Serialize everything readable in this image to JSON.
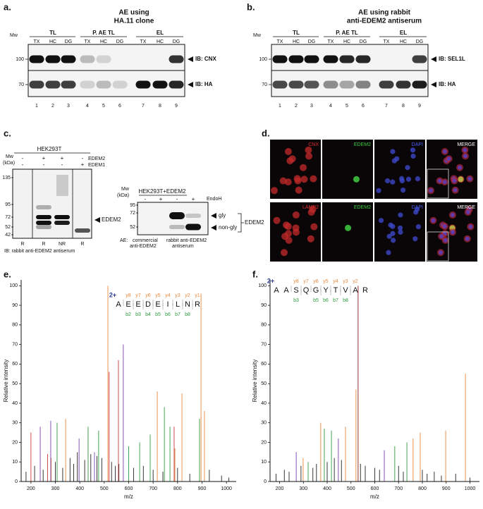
{
  "panels": {
    "a": {
      "label": "a.",
      "title": [
        "AE using",
        "HA.11 clone"
      ],
      "mw": "Mw",
      "groups": [
        "TL",
        "P. AE TL",
        "EL"
      ],
      "lanes": [
        "TX",
        "HC",
        "DG",
        "TX",
        "HC",
        "DG",
        "TX",
        "HC",
        "DG"
      ],
      "markers": [
        "100",
        "70"
      ],
      "blots": [
        "IB: CNX",
        "IB: HA"
      ],
      "lane_numbers": [
        "1",
        "2",
        "3",
        "4",
        "5",
        "6",
        "7",
        "8",
        "9"
      ]
    },
    "b": {
      "label": "b.",
      "title": [
        "AE using rabbit",
        "anti-EDEM2 antiserum"
      ],
      "mw": "Mw",
      "groups": [
        "TL",
        "P. AE TL",
        "EL"
      ],
      "lanes": [
        "TX",
        "HC",
        "DG",
        "TX",
        "HC",
        "DG",
        "TX",
        "HC",
        "DG"
      ],
      "markers": [
        "100",
        "70"
      ],
      "blots": [
        "IB: SEL1L",
        "IB: HA"
      ],
      "lane_numbers": [
        "1",
        "2",
        "3",
        "4",
        "5",
        "6",
        "7",
        "8",
        "9"
      ]
    },
    "c": {
      "label": "c.",
      "cell_line": "HEK293T",
      "mw": "Mw",
      "mw_unit": "(kDa)",
      "rows": [
        {
          "name": "EDEM2",
          "signs": [
            "-",
            "+",
            "+",
            "-"
          ]
        },
        {
          "name": "EDEM1",
          "signs": [
            "-",
            "-",
            "-",
            "+"
          ]
        }
      ],
      "markers": [
        "135",
        "95",
        "72",
        "52",
        "42"
      ],
      "arrow": "EDEM2",
      "conditions": [
        "R",
        "R",
        "NR",
        "R"
      ],
      "ib": "IB: rabbit anti-EDEM2 antiserum",
      "endoh_blot": {
        "cell_line": "HEK293T+EDEM2",
        "mw": "Mw",
        "mw_unit": "(kDa)",
        "treatment": "EndoH",
        "signs": [
          "-",
          "+",
          "-",
          "+"
        ],
        "markers": [
          "95",
          "72",
          "52"
        ],
        "bands": [
          "gly",
          "non-gly"
        ],
        "bracket": "EDEM2",
        "ae": "AE:",
        "antibodies": [
          [
            "commercial",
            "anti-EDEM2"
          ],
          [
            "rabbit anti-EDEM2",
            "antiserum"
          ]
        ]
      }
    },
    "d": {
      "label": "d.",
      "rows": [
        [
          "CNX",
          "EDEM2",
          "DAPI",
          "MERGE"
        ],
        [
          "LAMP2",
          "EDEM2",
          "DAPI",
          "MERGE"
        ]
      ]
    }
  },
  "chart_data": [
    {
      "type": "spectrum",
      "panel_label": "e.",
      "xlabel": "m/z",
      "ylabel": "Relative intensity",
      "xlim": [
        160,
        1040
      ],
      "xticks": [
        200,
        300,
        400,
        500,
        600,
        700,
        800,
        900,
        1000
      ],
      "ylim": [
        0,
        103
      ],
      "yticks": [
        0,
        10,
        20,
        30,
        40,
        50,
        60,
        70,
        80,
        90,
        100
      ],
      "series": [
        {
          "color": "#222222",
          "x": [
            180,
            215,
            250,
            300,
            330,
            360,
            375,
            390,
            420,
            445,
            470,
            490,
            530,
            545,
            560,
            620,
            660,
            700,
            740,
            800,
            850,
            930,
            980,
            1010
          ],
          "values": [
            5,
            8,
            6,
            10,
            7,
            12,
            9,
            15,
            11,
            14,
            13,
            12,
            10,
            8,
            9,
            7,
            8,
            6,
            5,
            7,
            4,
            6,
            3,
            2
          ]
        },
        {
          "color": "#e8873a",
          "x": [
            515,
            896,
            717,
            818,
            910,
            342,
            789,
            283
          ],
          "values": [
            100,
            96,
            46,
            45,
            36,
            32,
            17,
            12
          ]
        },
        {
          "color": "#2e9a3e",
          "x": [
            746,
            769,
            890,
            477,
            434,
            688,
            307,
            600,
            645
          ],
          "values": [
            38,
            28,
            32,
            26,
            28,
            24,
            30,
            18,
            20
          ]
        },
        {
          "color": "#d0353a",
          "x": [
            558,
            786,
            200,
            520,
            268
          ],
          "values": [
            62,
            28,
            25,
            56,
            14
          ]
        },
        {
          "color": "#7a3fb0",
          "x": [
            578,
            281,
            238,
            397,
            460
          ],
          "values": [
            70,
            31,
            28,
            22,
            15
          ]
        }
      ],
      "charge": "2+",
      "sequence": [
        "A",
        "E",
        "E",
        "D",
        "E",
        "I",
        "L",
        "N",
        "R"
      ],
      "y_ions": [
        "y8",
        "y7",
        "y6",
        "y5",
        "y4",
        "y3",
        "y2",
        "y1"
      ],
      "b_ions": [
        "b2",
        "b3",
        "b4",
        "b5",
        "b6",
        "b7",
        "b8"
      ]
    },
    {
      "type": "spectrum",
      "panel_label": "f.",
      "xlabel": "m/z",
      "ylabel": "Relative intensity",
      "xlim": [
        160,
        1040
      ],
      "xticks": [
        200,
        300,
        400,
        500,
        600,
        700,
        800,
        900,
        1000
      ],
      "ylim": [
        0,
        103
      ],
      "yticks": [
        0,
        10,
        20,
        30,
        40,
        50,
        60,
        70,
        80,
        90,
        100
      ],
      "series": [
        {
          "color": "#222222",
          "x": [
            185,
            220,
            240,
            290,
            340,
            355,
            400,
            430,
            460,
            540,
            560,
            600,
            620,
            700,
            720,
            800,
            820,
            850,
            880,
            940,
            1000
          ],
          "values": [
            4,
            6,
            5,
            8,
            7,
            9,
            10,
            12,
            11,
            9,
            8,
            7,
            6,
            8,
            5,
            6,
            4,
            5,
            3,
            4,
            2
          ]
        },
        {
          "color": "#8b1a1a",
          "x": [
            530
          ],
          "values": [
            100
          ]
        },
        {
          "color": "#e8873a",
          "x": [
            981,
            521,
            477,
            373,
            791,
            761,
            898,
            299
          ],
          "values": [
            55,
            47,
            28,
            30,
            25,
            22,
            26,
            12
          ]
        },
        {
          "color": "#2e9a3e",
          "x": [
            388,
            418,
            684,
            735,
            320
          ],
          "values": [
            27,
            26,
            18,
            20,
            10
          ]
        },
        {
          "color": "#7a3fb0",
          "x": [
            447,
            640,
            270
          ],
          "values": [
            22,
            16,
            15
          ]
        }
      ],
      "charge": "2+",
      "sequence": [
        "A",
        "A",
        "S",
        "Q",
        "G",
        "Y",
        "T",
        "V",
        "A",
        "R"
      ],
      "y_ions": [
        "y8",
        "y7",
        "y6",
        "y5",
        "y4",
        "y3",
        "y2"
      ],
      "b_ions": [
        "b3",
        "b5",
        "b6",
        "b7",
        "b8"
      ]
    }
  ]
}
